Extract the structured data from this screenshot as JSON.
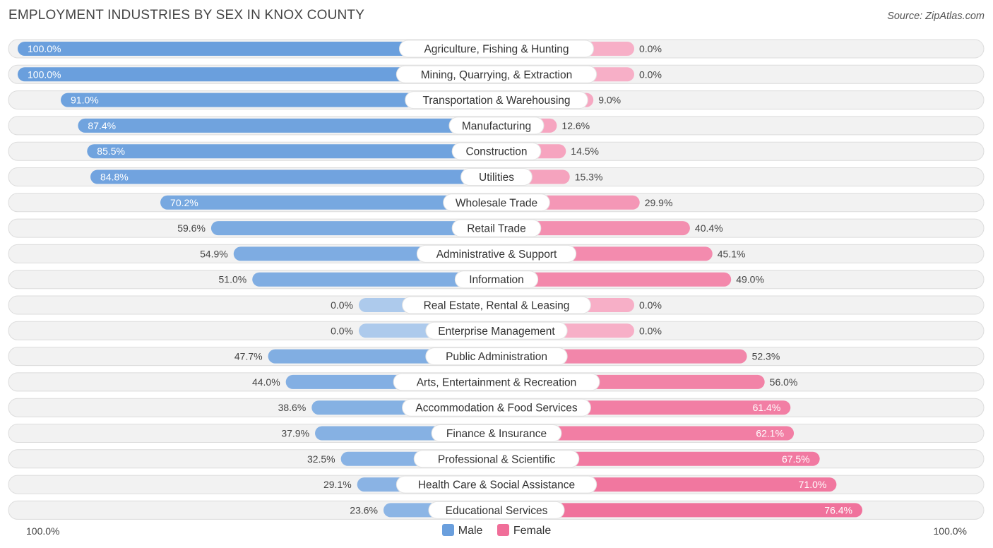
{
  "chart_data": {
    "type": "bar",
    "orientation": "diverging-horizontal",
    "title": "EMPLOYMENT INDUSTRIES BY SEX IN KNOX COUNTY",
    "source": "Source: ZipAtlas.com",
    "categories": [
      "Agriculture, Fishing & Hunting",
      "Mining, Quarrying, & Extraction",
      "Transportation & Warehousing",
      "Manufacturing",
      "Construction",
      "Utilities",
      "Wholesale Trade",
      "Retail Trade",
      "Administrative & Support",
      "Information",
      "Real Estate, Rental & Leasing",
      "Enterprise Management",
      "Public Administration",
      "Arts, Entertainment & Recreation",
      "Accommodation & Food Services",
      "Finance & Insurance",
      "Professional & Scientific",
      "Health Care & Social Assistance",
      "Educational Services"
    ],
    "series": [
      {
        "name": "Male",
        "color": "#6a9fdd",
        "values": [
          100.0,
          100.0,
          91.0,
          87.4,
          85.5,
          84.8,
          70.2,
          59.6,
          54.9,
          51.0,
          0.0,
          0.0,
          47.7,
          44.0,
          38.6,
          37.9,
          32.5,
          29.1,
          23.6
        ],
        "labels": [
          "100.0%",
          "100.0%",
          "91.0%",
          "87.4%",
          "85.5%",
          "84.8%",
          "70.2%",
          "59.6%",
          "54.9%",
          "51.0%",
          "0.0%",
          "0.0%",
          "47.7%",
          "44.0%",
          "38.6%",
          "37.9%",
          "32.5%",
          "29.1%",
          "23.6%"
        ]
      },
      {
        "name": "Female",
        "color": "#f06e99",
        "values": [
          0.0,
          0.0,
          9.0,
          12.6,
          14.5,
          15.3,
          29.9,
          40.4,
          45.1,
          49.0,
          0.0,
          0.0,
          52.3,
          56.0,
          61.4,
          62.1,
          67.5,
          71.0,
          76.4
        ],
        "labels": [
          "0.0%",
          "0.0%",
          "9.0%",
          "12.6%",
          "14.5%",
          "15.3%",
          "29.9%",
          "40.4%",
          "45.1%",
          "49.0%",
          "0.0%",
          "0.0%",
          "52.3%",
          "56.0%",
          "61.4%",
          "62.1%",
          "67.5%",
          "71.0%",
          "76.4%"
        ]
      }
    ],
    "xlim": [
      -100,
      100
    ],
    "axis_left_label": "100.0%",
    "axis_right_label": "100.0%",
    "legend": [
      "Male",
      "Female"
    ],
    "legend_position": "bottom-center"
  }
}
